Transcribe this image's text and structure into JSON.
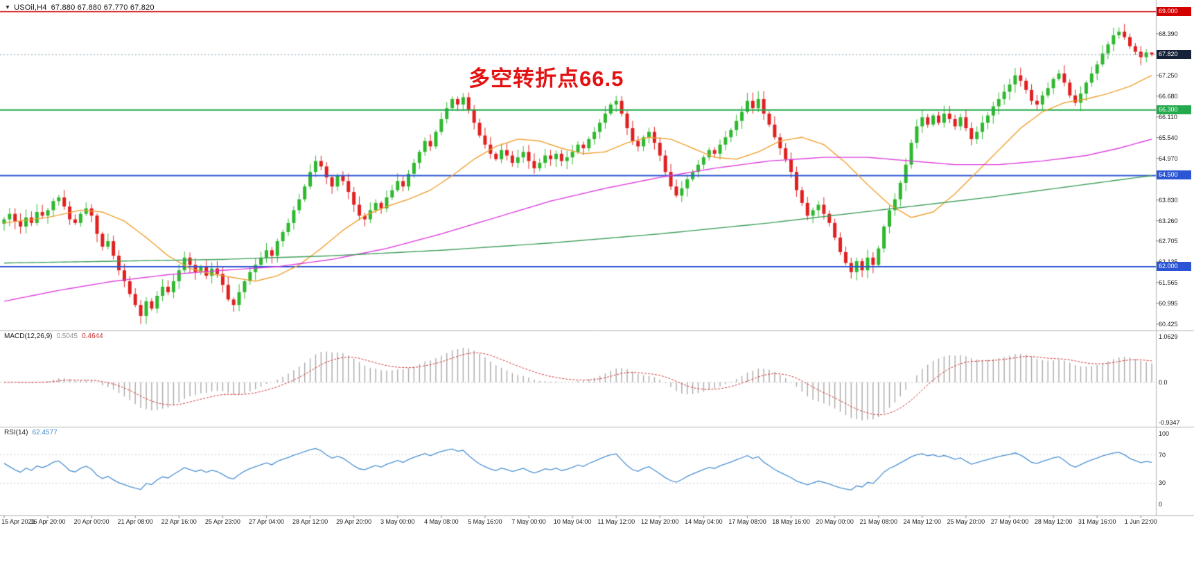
{
  "header": {
    "collapse_icon": "▼",
    "symbol_period": "USOil,H4",
    "ohlc": "67.880 67.880 67.770 67.820"
  },
  "chart_data": {
    "type": "candlestick",
    "symbol": "USOil",
    "timeframe": "H4",
    "ylim": [
      60.25,
      69.09
    ],
    "annotations": [
      {
        "text": "多空转折点66.5",
        "color": "#e31212"
      }
    ],
    "price_axis_labels": [
      "68.390",
      "67.250",
      "66.680",
      "66.110",
      "65.540",
      "64.970",
      "63.830",
      "63.260",
      "62.705",
      "62.135",
      "61.565",
      "60.995",
      "60.425"
    ],
    "time_labels": [
      "15 Apr 2021",
      "16 Apr 20:00",
      "20 Apr 00:00",
      "21 Apr 08:00",
      "22 Apr 16:00",
      "25 Apr 23:00",
      "27 Apr 04:00",
      "28 Apr 12:00",
      "29 Apr 20:00",
      "3 May 00:00",
      "4 May 08:00",
      "5 May 16:00",
      "7 May 00:00",
      "10 May 04:00",
      "11 May 12:00",
      "12 May 20:00",
      "14 May 04:00",
      "17 May 08:00",
      "18 May 16:00",
      "20 May 00:00",
      "21 May 08:00",
      "24 May 12:00",
      "25 May 20:00",
      "27 May 04:00",
      "28 May 12:00",
      "31 May 16:00",
      "1 Jun 22:00"
    ],
    "time_label_step": 8,
    "closes": [
      63.3,
      63.45,
      63.25,
      63.1,
      63.35,
      63.2,
      63.5,
      63.4,
      63.55,
      63.8,
      63.9,
      63.65,
      63.3,
      63.2,
      63.45,
      63.6,
      63.4,
      62.9,
      62.55,
      62.7,
      62.3,
      61.9,
      61.6,
      61.25,
      60.95,
      60.65,
      61.05,
      60.85,
      61.2,
      61.45,
      61.3,
      61.6,
      61.9,
      62.25,
      62.05,
      61.85,
      62.0,
      61.75,
      61.95,
      61.8,
      61.5,
      61.1,
      60.95,
      61.3,
      61.6,
      61.85,
      62.05,
      62.25,
      62.45,
      62.3,
      62.7,
      62.95,
      63.2,
      63.55,
      63.85,
      64.2,
      64.6,
      64.9,
      64.75,
      64.45,
      64.2,
      64.5,
      64.35,
      64.05,
      63.7,
      63.4,
      63.3,
      63.55,
      63.75,
      63.6,
      63.9,
      64.1,
      64.35,
      64.2,
      64.55,
      64.85,
      65.15,
      65.45,
      65.3,
      65.7,
      66.05,
      66.35,
      66.6,
      66.45,
      66.65,
      66.3,
      65.95,
      65.6,
      65.35,
      65.1,
      64.95,
      65.2,
      65.05,
      64.85,
      65.0,
      65.15,
      64.9,
      64.7,
      64.85,
      65.05,
      64.95,
      65.1,
      64.9,
      65.0,
      65.15,
      65.35,
      65.25,
      65.5,
      65.7,
      65.95,
      66.2,
      66.45,
      66.55,
      66.2,
      65.8,
      65.45,
      65.3,
      65.55,
      65.7,
      65.4,
      65.05,
      64.6,
      64.2,
      63.95,
      64.15,
      64.4,
      64.6,
      64.8,
      65.0,
      65.2,
      65.1,
      65.35,
      65.55,
      65.75,
      66.0,
      66.25,
      66.55,
      66.35,
      66.6,
      66.2,
      65.9,
      65.55,
      65.25,
      64.95,
      64.6,
      64.1,
      63.75,
      63.4,
      63.55,
      63.7,
      63.45,
      63.2,
      62.8,
      62.4,
      62.1,
      61.85,
      62.15,
      61.9,
      62.25,
      62.05,
      62.5,
      63.1,
      63.55,
      63.85,
      64.3,
      64.8,
      65.4,
      65.85,
      66.1,
      65.9,
      66.15,
      65.95,
      66.2,
      66.05,
      65.85,
      66.1,
      65.8,
      65.5,
      65.7,
      65.95,
      66.15,
      66.4,
      66.6,
      66.8,
      67.0,
      67.25,
      67.1,
      66.85,
      66.55,
      66.45,
      66.7,
      66.9,
      67.15,
      67.3,
      67.05,
      66.7,
      66.5,
      66.75,
      67.05,
      67.3,
      67.55,
      67.85,
      68.1,
      68.35,
      68.45,
      68.3,
      68.05,
      67.9,
      67.75,
      67.88,
      67.82
    ],
    "last_ohlc": [
      67.88,
      67.88,
      67.77,
      67.82
    ],
    "wick_overrides": [
      [
        25,
        "low",
        60.43
      ],
      [
        205,
        "high",
        68.66
      ]
    ],
    "candle_up_color": "#2eb82e",
    "candle_down_color": "#e02020",
    "hlines": [
      {
        "value": 69.0,
        "label": "69.000",
        "color": "#d40000",
        "width": 1.4
      },
      {
        "value": 66.3,
        "label": "66.300",
        "color": "#22aa4c",
        "width": 2
      },
      {
        "value": 64.5,
        "label": "64.500",
        "color": "#2b55d4",
        "width": 2
      },
      {
        "value": 62.0,
        "label": "62.000",
        "color": "#2b55d4",
        "width": 2
      }
    ],
    "current_price": {
      "value": 67.82,
      "label": "67.820",
      "badge_color": "#152238",
      "line_color": "#8fa3b5"
    },
    "moving_averages": [
      {
        "name": "ma-fast-orange",
        "color": "#f0a030",
        "points": [
          [
            0,
            63.2
          ],
          [
            8,
            63.35
          ],
          [
            14,
            63.55
          ],
          [
            18,
            63.5
          ],
          [
            22,
            63.25
          ],
          [
            26,
            62.8
          ],
          [
            30,
            62.3
          ],
          [
            34,
            61.95
          ],
          [
            38,
            61.8
          ],
          [
            42,
            61.7
          ],
          [
            46,
            61.6
          ],
          [
            50,
            61.75
          ],
          [
            54,
            62.05
          ],
          [
            58,
            62.5
          ],
          [
            62,
            63.0
          ],
          [
            66,
            63.4
          ],
          [
            70,
            63.65
          ],
          [
            74,
            63.85
          ],
          [
            78,
            64.1
          ],
          [
            82,
            64.5
          ],
          [
            86,
            64.95
          ],
          [
            90,
            65.3
          ],
          [
            94,
            65.5
          ],
          [
            98,
            65.45
          ],
          [
            102,
            65.25
          ],
          [
            106,
            65.1
          ],
          [
            110,
            65.15
          ],
          [
            114,
            65.4
          ],
          [
            118,
            65.55
          ],
          [
            122,
            65.5
          ],
          [
            126,
            65.25
          ],
          [
            130,
            65.0
          ],
          [
            134,
            64.95
          ],
          [
            138,
            65.15
          ],
          [
            142,
            65.45
          ],
          [
            146,
            65.55
          ],
          [
            150,
            65.35
          ],
          [
            154,
            64.85
          ],
          [
            158,
            64.25
          ],
          [
            162,
            63.7
          ],
          [
            166,
            63.35
          ],
          [
            170,
            63.5
          ],
          [
            174,
            64.0
          ],
          [
            178,
            64.6
          ],
          [
            182,
            65.2
          ],
          [
            186,
            65.8
          ],
          [
            190,
            66.25
          ],
          [
            194,
            66.5
          ],
          [
            198,
            66.6
          ],
          [
            202,
            66.75
          ],
          [
            206,
            66.95
          ],
          [
            210,
            67.25
          ]
        ]
      },
      {
        "name": "ma-medium-magenta",
        "color": "#dd3fdd",
        "points": [
          [
            0,
            61.05
          ],
          [
            10,
            61.35
          ],
          [
            20,
            61.6
          ],
          [
            30,
            61.78
          ],
          [
            40,
            61.9
          ],
          [
            50,
            62.0
          ],
          [
            60,
            62.2
          ],
          [
            70,
            62.5
          ],
          [
            80,
            62.9
          ],
          [
            90,
            63.35
          ],
          [
            100,
            63.8
          ],
          [
            110,
            64.15
          ],
          [
            120,
            64.45
          ],
          [
            130,
            64.7
          ],
          [
            140,
            64.9
          ],
          [
            150,
            65.0
          ],
          [
            158,
            65.0
          ],
          [
            166,
            64.9
          ],
          [
            174,
            64.8
          ],
          [
            182,
            64.8
          ],
          [
            190,
            64.9
          ],
          [
            198,
            65.05
          ],
          [
            204,
            65.25
          ],
          [
            210,
            65.5
          ]
        ]
      },
      {
        "name": "ma-slow-green",
        "color": "#3f9e5a",
        "points": [
          [
            0,
            62.1
          ],
          [
            20,
            62.15
          ],
          [
            40,
            62.2
          ],
          [
            60,
            62.3
          ],
          [
            80,
            62.45
          ],
          [
            100,
            62.65
          ],
          [
            120,
            62.9
          ],
          [
            140,
            63.2
          ],
          [
            160,
            63.55
          ],
          [
            180,
            63.9
          ],
          [
            195,
            64.2
          ],
          [
            210,
            64.5
          ]
        ]
      }
    ],
    "indicators": {
      "macd": {
        "label": "MACD(12,26,9)",
        "params": [
          12,
          26,
          9
        ],
        "value_main": "0.5045",
        "value_signal": "0.4644",
        "scale_labels": [
          "1.0629",
          "0.0",
          "-0.9347"
        ],
        "scale": [
          1.0629,
          -0.9347
        ],
        "histogram_color": "#a8a8a8",
        "signal_color": "#d03030"
      },
      "rsi": {
        "label": "RSI(14)",
        "period": 14,
        "value": "62.4577",
        "scale_labels": [
          "100",
          "70",
          "30",
          "0"
        ],
        "levels": [
          70,
          30
        ],
        "line_color": "#4a8fd2",
        "level_line_color": "#c8c8c8"
      }
    }
  }
}
